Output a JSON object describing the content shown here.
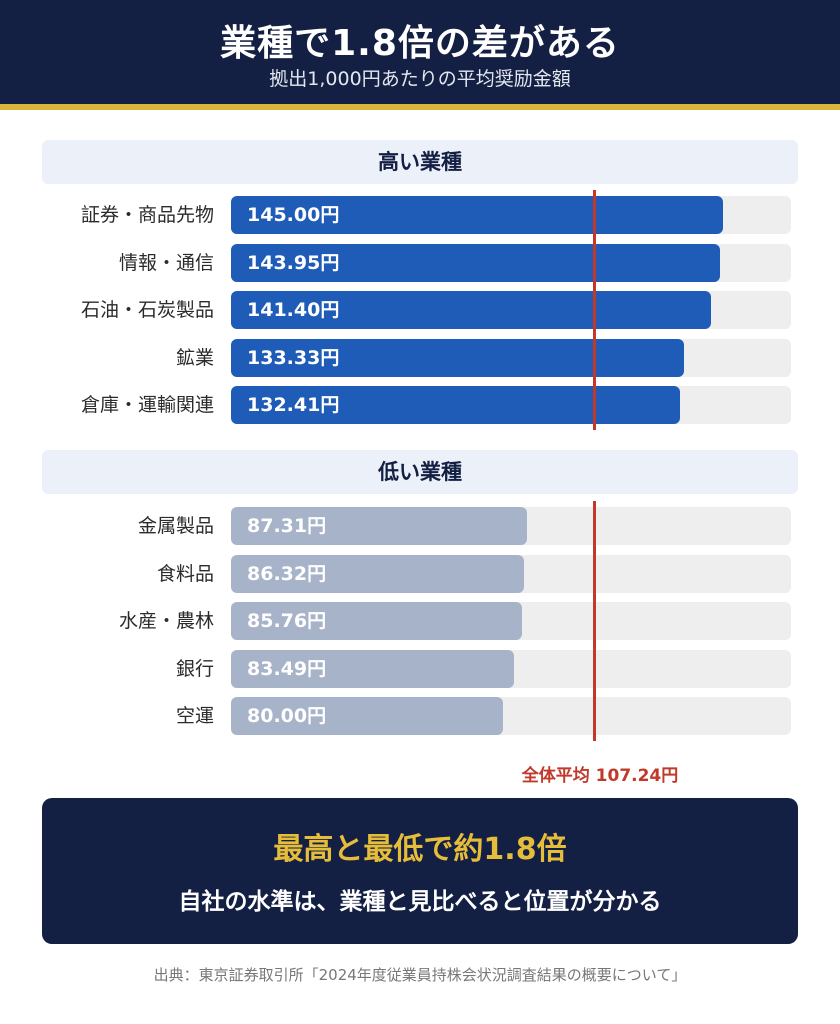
{
  "header": {
    "title": "業種で1.8倍の差がある",
    "subtitle": "拠出1,000円あたりの平均奨励金額"
  },
  "chart_data": {
    "type": "bar",
    "orientation": "horizontal",
    "unit": "円",
    "xlim": [
      0,
      165
    ],
    "average": {
      "label": "全体平均",
      "value": 107.24,
      "text": "107.24円",
      "color": "#c0392b"
    },
    "groups": [
      {
        "title": "高い業種",
        "color": "#1f5cb8",
        "categories": [
          "証券・商品先物",
          "情報・通信",
          "石油・石炭製品",
          "鉱業",
          "倉庫・運輸関連"
        ],
        "values": [
          145.0,
          143.95,
          141.4,
          133.33,
          132.41
        ],
        "labels": [
          "145.00円",
          "143.95円",
          "141.40円",
          "133.33円",
          "132.41円"
        ]
      },
      {
        "title": "低い業種",
        "color": "#a6b3c8",
        "categories": [
          "金属製品",
          "食料品",
          "水産・農林",
          "銀行",
          "空運"
        ],
        "values": [
          87.31,
          86.32,
          85.76,
          83.49,
          80.0
        ],
        "labels": [
          "87.31円",
          "86.32円",
          "85.76円",
          "83.49円",
          "80.00円"
        ]
      }
    ]
  },
  "callout": {
    "title": "最高と最低で約1.8倍",
    "text": "自社の水準は、業種と見比べると位置が分かる"
  },
  "source": "出典：東京証券取引所「2024年度従業員持株会状況調査結果の概要について」"
}
